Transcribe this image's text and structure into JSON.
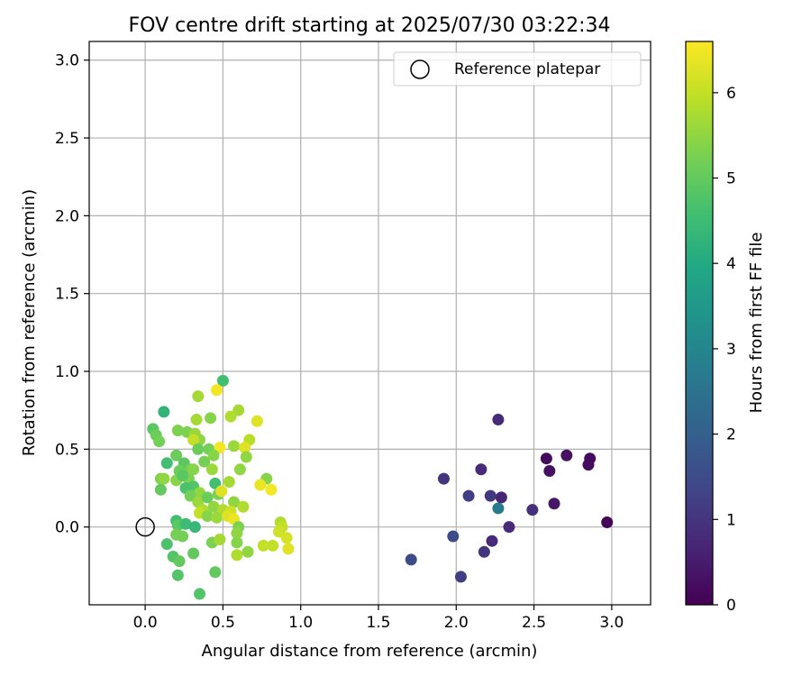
{
  "chart_data": {
    "type": "scatter",
    "title": "FOV centre drift starting at 2025/07/30 03:22:34",
    "xlabel": "Angular distance from reference (arcmin)",
    "ylabel": "Rotation from reference (arcmin)",
    "xlim": [
      -0.36,
      3.25
    ],
    "ylim": [
      -0.5,
      3.12
    ],
    "xticks": [
      "0.0",
      "0.5",
      "1.0",
      "1.5",
      "2.0",
      "2.5",
      "3.0"
    ],
    "yticks": [
      "0.0",
      "0.5",
      "1.0",
      "1.5",
      "2.0",
      "2.5",
      "3.0"
    ],
    "grid": true,
    "legend": {
      "position": "top-right",
      "entries": [
        "Reference platepar"
      ]
    },
    "reference_point": {
      "x": 0.0,
      "y": 0.0
    },
    "colorbar": {
      "label": "Hours from first FF file",
      "colormap": "viridis",
      "min": 0,
      "max": 6.6,
      "ticks": [
        "0",
        "1",
        "2",
        "3",
        "4",
        "5",
        "6"
      ]
    },
    "series": [
      {
        "points": [
          [
            2.97,
            0.03,
            0.1
          ],
          [
            2.86,
            0.44,
            0.2
          ],
          [
            2.85,
            0.4,
            0.2
          ],
          [
            2.71,
            0.46,
            0.3
          ],
          [
            2.63,
            0.15,
            0.4
          ],
          [
            2.6,
            0.36,
            0.3
          ],
          [
            2.58,
            0.44,
            0.2
          ],
          [
            2.49,
            0.11,
            0.9
          ],
          [
            2.34,
            0.0,
            0.8
          ],
          [
            2.29,
            0.19,
            0.7
          ],
          [
            2.27,
            0.69,
            0.8
          ],
          [
            2.27,
            0.12,
            2.7
          ],
          [
            2.23,
            -0.09,
            0.8
          ],
          [
            2.22,
            0.2,
            1.1
          ],
          [
            2.18,
            -0.16,
            1.0
          ],
          [
            2.16,
            0.37,
            0.8
          ],
          [
            2.08,
            0.2,
            1.2
          ],
          [
            2.03,
            -0.32,
            1.2
          ],
          [
            1.98,
            -0.06,
            1.5
          ],
          [
            1.92,
            0.31,
            1.0
          ],
          [
            1.71,
            -0.21,
            1.5
          ],
          [
            0.5,
            0.94,
            4.6
          ],
          [
            0.46,
            0.88,
            6.5
          ],
          [
            0.34,
            0.84,
            5.7
          ],
          [
            0.12,
            0.74,
            4.3
          ],
          [
            0.6,
            0.75,
            5.7
          ],
          [
            0.72,
            0.68,
            6.3
          ],
          [
            0.55,
            0.71,
            5.8
          ],
          [
            0.42,
            0.7,
            5.4
          ],
          [
            0.33,
            0.69,
            5.7
          ],
          [
            0.05,
            0.63,
            4.9
          ],
          [
            0.07,
            0.59,
            5.1
          ],
          [
            0.09,
            0.55,
            5.2
          ],
          [
            0.21,
            0.62,
            5.3
          ],
          [
            0.27,
            0.61,
            5.3
          ],
          [
            0.32,
            0.6,
            5.6
          ],
          [
            0.35,
            0.56,
            5.5
          ],
          [
            0.67,
            0.56,
            5.9
          ],
          [
            0.31,
            0.56,
            6.0
          ],
          [
            0.41,
            0.5,
            5.2
          ],
          [
            0.48,
            0.51,
            6.5
          ],
          [
            0.57,
            0.52,
            5.6
          ],
          [
            0.64,
            0.51,
            6.3
          ],
          [
            0.34,
            0.5,
            5.1
          ],
          [
            0.2,
            0.46,
            5.1
          ],
          [
            0.38,
            0.42,
            5.2
          ],
          [
            0.44,
            0.46,
            5.4
          ],
          [
            0.65,
            0.45,
            5.5
          ],
          [
            0.14,
            0.41,
            4.6
          ],
          [
            0.25,
            0.41,
            4.9
          ],
          [
            0.22,
            0.36,
            5.1
          ],
          [
            0.29,
            0.37,
            5.2
          ],
          [
            0.31,
            0.37,
            5.4
          ],
          [
            0.43,
            0.37,
            5.6
          ],
          [
            0.1,
            0.31,
            5.3
          ],
          [
            0.12,
            0.31,
            5.5
          ],
          [
            0.2,
            0.3,
            5.4
          ],
          [
            0.28,
            0.31,
            5.3
          ],
          [
            0.61,
            0.37,
            5.5
          ],
          [
            0.24,
            0.33,
            4.9
          ],
          [
            0.45,
            0.28,
            4.6
          ],
          [
            0.54,
            0.29,
            5.7
          ],
          [
            0.31,
            0.26,
            4.8
          ],
          [
            0.26,
            0.25,
            4.7
          ],
          [
            0.1,
            0.24,
            5.0
          ],
          [
            0.35,
            0.22,
            5.5
          ],
          [
            0.78,
            0.31,
            5.4
          ],
          [
            0.74,
            0.27,
            6.4
          ],
          [
            0.81,
            0.24,
            6.5
          ],
          [
            0.29,
            0.2,
            5.2
          ],
          [
            0.34,
            0.16,
            5.6
          ],
          [
            0.4,
            0.19,
            5.1
          ],
          [
            0.47,
            0.21,
            5.3
          ],
          [
            0.49,
            0.23,
            6.3
          ],
          [
            0.57,
            0.16,
            5.5
          ],
          [
            0.37,
            0.11,
            5.8
          ],
          [
            0.44,
            0.13,
            5.5
          ],
          [
            0.5,
            0.11,
            5.8
          ],
          [
            0.55,
            0.1,
            6.1
          ],
          [
            0.63,
            0.13,
            5.8
          ],
          [
            0.35,
            0.09,
            6.0
          ],
          [
            0.4,
            0.07,
            5.4
          ],
          [
            0.46,
            0.06,
            5.6
          ],
          [
            0.53,
            0.07,
            6.3
          ],
          [
            0.57,
            0.05,
            6.4
          ],
          [
            0.2,
            0.04,
            4.6
          ],
          [
            0.21,
            0.01,
            4.9
          ],
          [
            0.26,
            0.02,
            4.5
          ],
          [
            0.32,
            0.0,
            4.4
          ],
          [
            0.6,
            0.0,
            5.3
          ],
          [
            0.87,
            0.03,
            5.8
          ],
          [
            0.88,
            0.0,
            6.0
          ],
          [
            0.86,
            -0.03,
            6.1
          ],
          [
            0.2,
            -0.05,
            5.2
          ],
          [
            0.24,
            -0.06,
            5.2
          ],
          [
            0.59,
            -0.04,
            5.5
          ],
          [
            0.43,
            -0.1,
            5.3
          ],
          [
            0.48,
            -0.08,
            5.7
          ],
          [
            0.59,
            -0.1,
            5.4
          ],
          [
            0.91,
            -0.07,
            6.2
          ],
          [
            0.14,
            -0.11,
            4.7
          ],
          [
            0.76,
            -0.12,
            6.0
          ],
          [
            0.82,
            -0.12,
            6.0
          ],
          [
            0.92,
            -0.14,
            6.3
          ],
          [
            0.31,
            -0.17,
            5.0
          ],
          [
            0.18,
            -0.19,
            4.8
          ],
          [
            0.66,
            -0.16,
            5.5
          ],
          [
            0.59,
            -0.18,
            5.8
          ],
          [
            0.22,
            -0.22,
            5.0
          ],
          [
            0.21,
            -0.31,
            4.8
          ],
          [
            0.45,
            -0.29,
            5.0
          ],
          [
            0.35,
            -0.43,
            4.8
          ]
        ]
      }
    ]
  }
}
